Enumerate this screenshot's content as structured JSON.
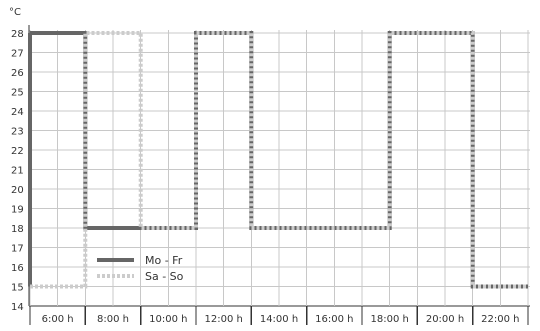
{
  "chart_data": {
    "type": "line",
    "step": true,
    "ylabel": "°C",
    "xlabel": "",
    "ylim": [
      14,
      28
    ],
    "yticks": [
      28,
      27,
      26,
      25,
      24,
      23,
      22,
      21,
      20,
      19,
      18,
      17,
      16,
      15,
      14
    ],
    "xlim": [
      5,
      23
    ],
    "xticks": [
      "6:00 h",
      "8:00 h",
      "10:00 h",
      "12:00 h",
      "14:00 h",
      "16:00 h",
      "18:00 h",
      "20:00 h",
      "22:00 h"
    ],
    "grid": true,
    "legend_position": "bottom-left",
    "series": [
      {
        "name": "Mo - Fr",
        "color": "#666666",
        "style": "solid",
        "x": [
          "5:00",
          "7:00",
          "7:00",
          "9:00",
          "9:00",
          "11:00",
          "11:00",
          "13:00",
          "13:00",
          "18:00",
          "18:00",
          "21:00",
          "21:00",
          "23:00"
        ],
        "y": [
          28,
          28,
          18,
          18,
          18,
          18,
          28,
          28,
          18,
          18,
          28,
          28,
          15,
          15
        ],
        "start_drop_to": 15
      },
      {
        "name": "Sa - So",
        "color": "#cccccc",
        "style": "dotted",
        "x": [
          "5:00",
          "7:00",
          "7:00",
          "9:00",
          "9:00",
          "11:00",
          "11:00",
          "13:00",
          "13:00",
          "18:00",
          "18:00",
          "21:00",
          "21:00",
          "23:00"
        ],
        "y": [
          15,
          15,
          28,
          28,
          18,
          18,
          28,
          28,
          18,
          18,
          28,
          28,
          15,
          15
        ]
      }
    ]
  }
}
